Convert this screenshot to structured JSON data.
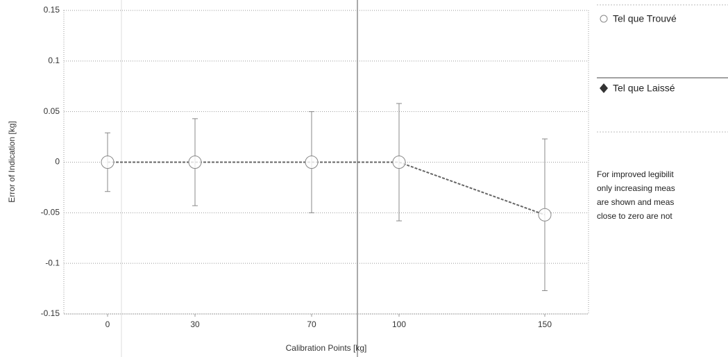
{
  "chart_data": {
    "type": "errorbar",
    "x_label": "Calibration Points [kg]",
    "y_label": "Error of Indication [kg]",
    "x": [
      0,
      30,
      70,
      100,
      150
    ],
    "series": [
      {
        "name": "Tel que Trouvé",
        "color": "#888888",
        "values": [
          0,
          0,
          0,
          0,
          -0.052
        ],
        "errors": [
          0.029,
          0.043,
          0.05,
          0.058,
          0.075
        ]
      }
    ],
    "legend": [
      "Tel que Trouvé",
      "Tel que Laissé"
    ],
    "note": [
      "For improved legibilit",
      "only increasing meas",
      "are shown and meas",
      "close to zero are not"
    ],
    "xlim": [
      -15,
      165
    ],
    "xticks": [
      0,
      30,
      70,
      100,
      150
    ],
    "ylim": [
      -0.15,
      0.15
    ],
    "yticks": [
      0.15,
      0.1,
      0.05,
      0,
      -0.05,
      -0.1,
      -0.15
    ],
    "grid": true
  }
}
